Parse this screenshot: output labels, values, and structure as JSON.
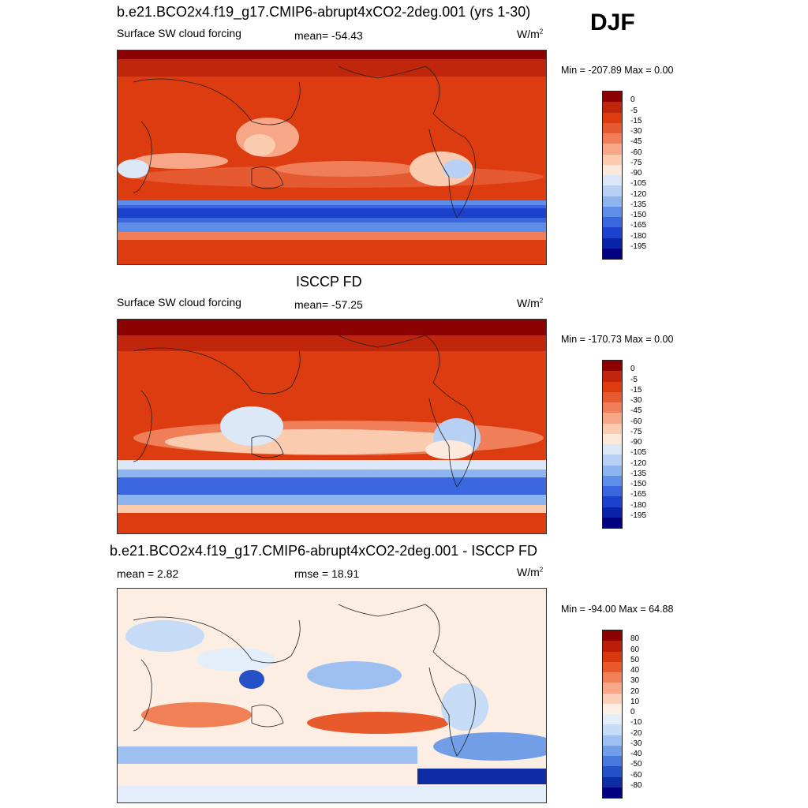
{
  "season": "DJF",
  "panels": [
    {
      "title": "b.e21.BCO2x4.f19_g17.CMIP6-abrupt4xCO2-2deg.001 (yrs 1-30)",
      "left_label": "Surface SW cloud forcing",
      "center_label": "mean= -54.43",
      "units": "W/m",
      "units_exp": "2",
      "minmax": "Min = -207.89 Max =    0.00",
      "colorbar_labels": [
        "0",
        "-5",
        "-15",
        "-30",
        "-45",
        "-60",
        "-75",
        "-90",
        "-105",
        "-120",
        "-135",
        "-150",
        "-165",
        "-180",
        "-195"
      ]
    },
    {
      "title": "ISCCP FD",
      "left_label": "Surface SW cloud forcing",
      "center_label": "mean= -57.25",
      "units": "W/m",
      "units_exp": "2",
      "minmax": "Min = -170.73 Max =    0.00",
      "colorbar_labels": [
        "0",
        "-5",
        "-15",
        "-30",
        "-45",
        "-60",
        "-75",
        "-90",
        "-105",
        "-120",
        "-135",
        "-150",
        "-165",
        "-180",
        "-195"
      ]
    },
    {
      "title": "b.e21.BCO2x4.f19_g17.CMIP6-abrupt4xCO2-2deg.001 - ISCCP FD",
      "left_label": "mean =   2.82",
      "center_label": "rmse =  18.91",
      "units": "W/m",
      "units_exp": "2",
      "minmax": "Min = -94.00 Max =  64.88",
      "colorbar_labels": [
        "80",
        "60",
        "50",
        "40",
        "30",
        "20",
        "10",
        "0",
        "-10",
        "-20",
        "-30",
        "-40",
        "-50",
        "-60",
        "-80"
      ]
    }
  ],
  "colors": {
    "abs_scale": [
      "#8b0000",
      "#c0260c",
      "#dc3c0f",
      "#e65a32",
      "#f07e58",
      "#f7a688",
      "#fbcbb0",
      "#fde9dc",
      "#dce8f8",
      "#b8d0f4",
      "#8eb4f0",
      "#5e8ee8",
      "#3a66e0",
      "#1a40cc",
      "#0a22a8",
      "#000080"
    ],
    "diff_scale": [
      "#8b0000",
      "#b81e0a",
      "#d8380e",
      "#e85a2c",
      "#f28056",
      "#f8a888",
      "#fcd0b8",
      "#fdeee4",
      "#e4eefa",
      "#c6dbf6",
      "#9ec0f0",
      "#729ee8",
      "#4878dc",
      "#2450c8",
      "#0e2ca4",
      "#000080"
    ],
    "coast": "#222222"
  }
}
